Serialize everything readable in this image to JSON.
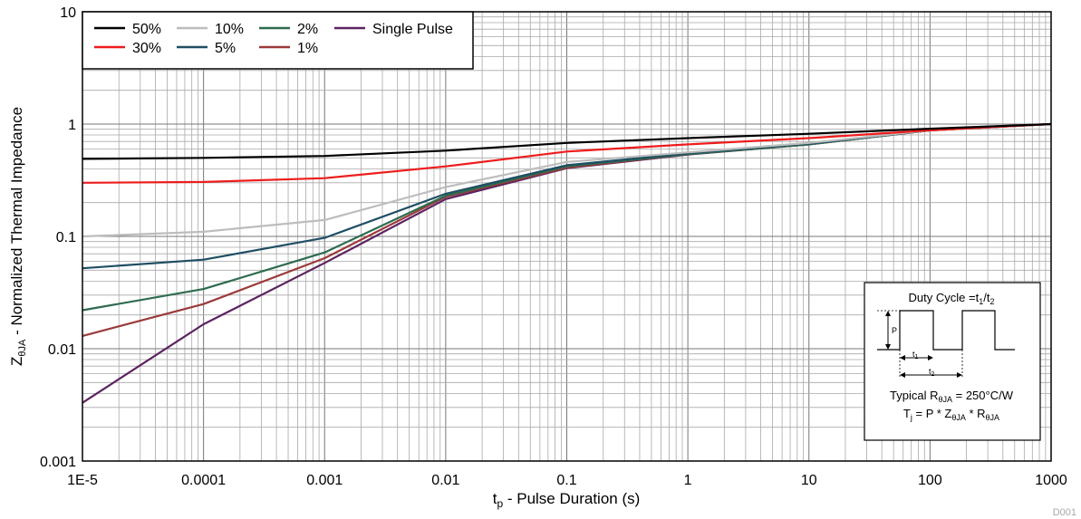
{
  "chart_data": {
    "type": "line",
    "xlabel": {
      "main": "t",
      "sub": "p",
      "rest": " - Pulse Duration (s)"
    },
    "ylabel": {
      "main": "Z",
      "sub": "θJA",
      "rest": " - Normalized Thermal Impedance"
    },
    "xscale": "log",
    "yscale": "log",
    "xlim": [
      1e-05,
      1000
    ],
    "ylim": [
      0.001,
      10
    ],
    "grid": true,
    "x_tick_labels": [
      "1E-5",
      "0.0001",
      "0.001",
      "0.01",
      "0.1",
      "1",
      "10",
      "100",
      "1000"
    ],
    "y_tick_labels": [
      "0.001",
      "0.01",
      "0.1",
      "1",
      "10"
    ],
    "legend_position": "top-left",
    "legend_columns": 4,
    "series": [
      {
        "name": "50%",
        "color": "#000000",
        "x": [
          1e-05,
          0.0001,
          0.001,
          0.01,
          0.1,
          1,
          10,
          100,
          1000
        ],
        "y": [
          0.49,
          0.5,
          0.52,
          0.58,
          0.68,
          0.75,
          0.82,
          0.91,
          1.0
        ]
      },
      {
        "name": "30%",
        "color": "#ee1c1c",
        "x": [
          1e-05,
          0.0001,
          0.001,
          0.01,
          0.1,
          1,
          10,
          100,
          1000
        ],
        "y": [
          0.3,
          0.305,
          0.33,
          0.42,
          0.57,
          0.66,
          0.75,
          0.88,
          1.0
        ]
      },
      {
        "name": "10%",
        "color": "#bdbdbd",
        "x": [
          1e-05,
          0.0001,
          0.001,
          0.01,
          0.1,
          1,
          10,
          100,
          1000
        ],
        "y": [
          0.1,
          0.11,
          0.14,
          0.275,
          0.46,
          0.56,
          0.68,
          0.88,
          1.0
        ]
      },
      {
        "name": "5%",
        "color": "#1f4e63",
        "x": [
          1e-05,
          0.0001,
          0.001,
          0.01,
          0.1,
          1,
          10,
          100,
          1000
        ],
        "y": [
          0.052,
          0.062,
          0.097,
          0.24,
          0.43,
          0.55,
          0.67,
          0.88,
          1.0
        ]
      },
      {
        "name": "2%",
        "color": "#2e6b4f",
        "x": [
          1e-05,
          0.0001,
          0.001,
          0.01,
          0.1,
          1,
          10,
          100,
          1000
        ],
        "y": [
          0.022,
          0.034,
          0.072,
          0.23,
          0.42,
          0.54,
          0.66,
          0.88,
          1.0
        ]
      },
      {
        "name": "1%",
        "color": "#9b3a3a",
        "x": [
          1e-05,
          0.0001,
          0.001,
          0.01,
          0.1,
          1,
          10,
          100,
          1000
        ],
        "y": [
          0.013,
          0.025,
          0.064,
          0.225,
          0.41,
          0.54,
          0.66,
          0.88,
          1.0
        ]
      },
      {
        "name": "Single Pulse",
        "color": "#5c2360",
        "x": [
          1e-05,
          0.0001,
          0.001,
          0.01,
          0.1,
          1,
          10,
          100,
          1000
        ],
        "y": [
          0.0033,
          0.0165,
          0.058,
          0.215,
          0.405,
          0.535,
          0.66,
          0.88,
          1.0
        ]
      }
    ],
    "legend_order": [
      "50%",
      "10%",
      "2%",
      "Single Pulse",
      "30%",
      "5%",
      "1%"
    ],
    "inset": {
      "title": {
        "text": "Duty Cycle =t",
        "s1": "1",
        "mid": "/t",
        "s2": "2"
      },
      "p_label": "P",
      "t1": {
        "main": "t",
        "sub": "1"
      },
      "t2": {
        "main": "t",
        "sub": "2"
      },
      "line1": {
        "pre": "Typical R",
        "sub": "θJA",
        "post": " = 250°C/W"
      },
      "line2": {
        "a": "T",
        "a_sub": "j",
        "b": " = P * Z",
        "b_sub": "θJA",
        "c": " * R",
        "c_sub": "θJA"
      }
    }
  },
  "watermark": "D001"
}
